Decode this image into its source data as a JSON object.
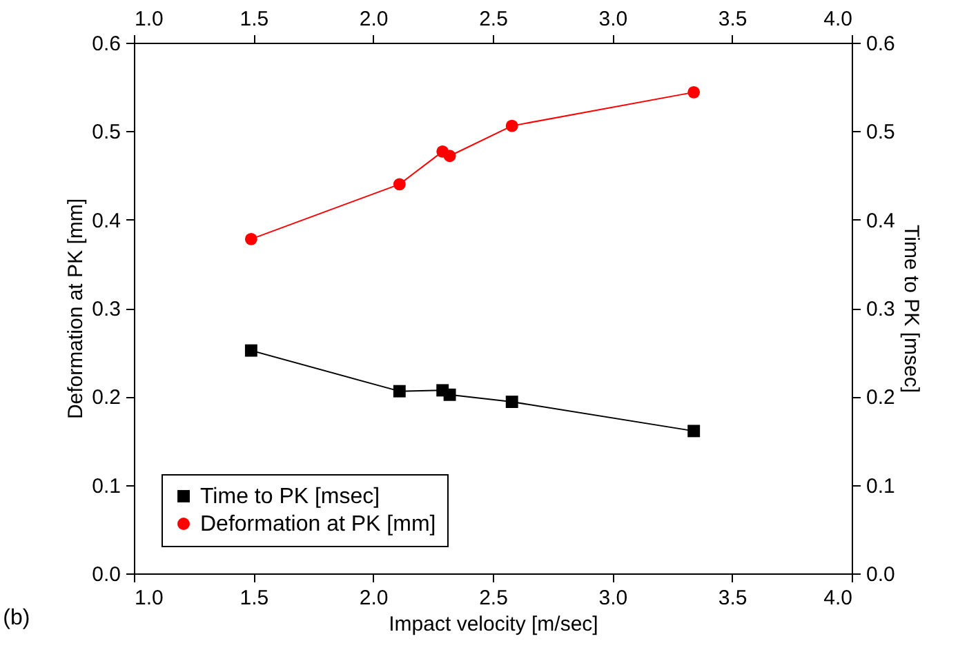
{
  "chart_data": {
    "type": "line",
    "xlabel": "Impact velocity [m/sec]",
    "ylabel": "Deformation at PK [mm]",
    "y2label": "Time to PK [msec]",
    "annotations": [
      "(b)"
    ],
    "series": [
      {
        "name": "Time to PK [msec]",
        "color": "#000000",
        "marker": "square",
        "axis": "y2",
        "x": [
          1.49,
          2.11,
          2.29,
          2.32,
          2.58,
          3.34
        ],
        "values": [
          0.252,
          0.206,
          0.207,
          0.202,
          0.194,
          0.161
        ]
      },
      {
        "name": "Deformation at PK [mm]",
        "color": "#ff0000",
        "marker": "circle",
        "x": [
          1.49,
          2.11,
          2.29,
          2.32,
          2.58,
          3.34
        ],
        "values": [
          0.378,
          0.44,
          0.477,
          0.472,
          0.506,
          0.544
        ]
      }
    ],
    "xlim": [
      1.0,
      4.0
    ],
    "xticks": [
      {
        "value": 1.0,
        "label": "1.0"
      },
      {
        "value": 1.5,
        "label": "1.5"
      },
      {
        "value": 2.0,
        "label": "2.0"
      },
      {
        "value": 2.5,
        "label": "2.5"
      },
      {
        "value": 3.0,
        "label": "3.0"
      },
      {
        "value": 3.5,
        "label": "3.5"
      },
      {
        "value": 4.0,
        "label": "4.0"
      }
    ],
    "x2lim": [
      1.0,
      4.0
    ],
    "x2ticks": [
      {
        "value": 1.0,
        "label": "1.0"
      },
      {
        "value": 1.5,
        "label": "1.5"
      },
      {
        "value": 2.0,
        "label": "2.0"
      },
      {
        "value": 2.5,
        "label": "2.5"
      },
      {
        "value": 3.0,
        "label": "3.0"
      },
      {
        "value": 3.5,
        "label": "3.5"
      },
      {
        "value": 4.0,
        "label": "4.0"
      }
    ],
    "ylim": [
      0.0,
      0.6
    ],
    "yticks": [
      {
        "value": 0.0,
        "label": "0.0"
      },
      0.1,
      0.2,
      0.3,
      0.4,
      0.5,
      0.6
    ],
    "y2lim": [
      0.0,
      0.6
    ],
    "y2ticks": [
      {
        "value": 0.0,
        "label": "0.0"
      },
      0.1,
      0.2,
      0.3,
      0.4,
      0.5,
      0.6
    ],
    "legend": "bottom left",
    "grid": false
  }
}
